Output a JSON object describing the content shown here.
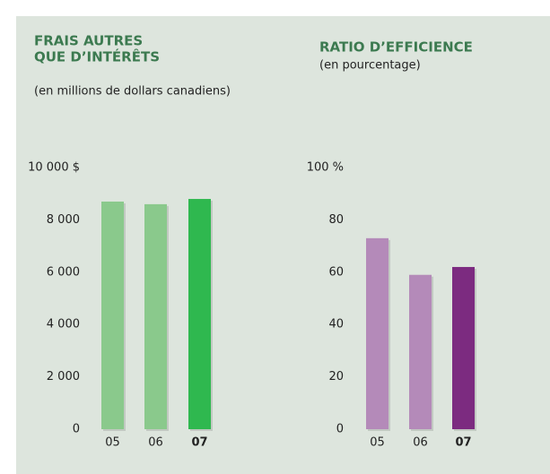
{
  "chart_data": [
    {
      "type": "bar",
      "title_lines": [
        "FRAIS AUTRES",
        "QUE D’INTÉRÊTS"
      ],
      "subtitle": "(en millions de dollars canadiens)",
      "categories": [
        "05",
        "06",
        "07"
      ],
      "values": [
        8700,
        8600,
        8800
      ],
      "colors": [
        "#8ac98c",
        "#8ac98c",
        "#2fb84f"
      ],
      "ylim": [
        0,
        10000
      ],
      "yticks": [
        0,
        {
          "value": 2000,
          "label": "2 000"
        },
        {
          "value": 4000,
          "label": "4 000"
        },
        {
          "value": 6000,
          "label": "6 000"
        },
        {
          "value": 8000,
          "label": "8 000"
        },
        {
          "value": 10000,
          "label": "10 000 $"
        }
      ]
    },
    {
      "type": "bar",
      "title_lines": [
        "RATIO D’EFFICIENCE"
      ],
      "subtitle": "(en pourcentage)",
      "categories": [
        "05",
        "06",
        "07"
      ],
      "values": [
        73,
        59,
        62
      ],
      "colors": [
        "#b48ab9",
        "#b48ab9",
        "#7c2b80"
      ],
      "ylim": [
        0,
        100
      ],
      "yticks": [
        0,
        20,
        40,
        60,
        80,
        {
          "value": 100,
          "label": "100 %"
        }
      ]
    }
  ]
}
